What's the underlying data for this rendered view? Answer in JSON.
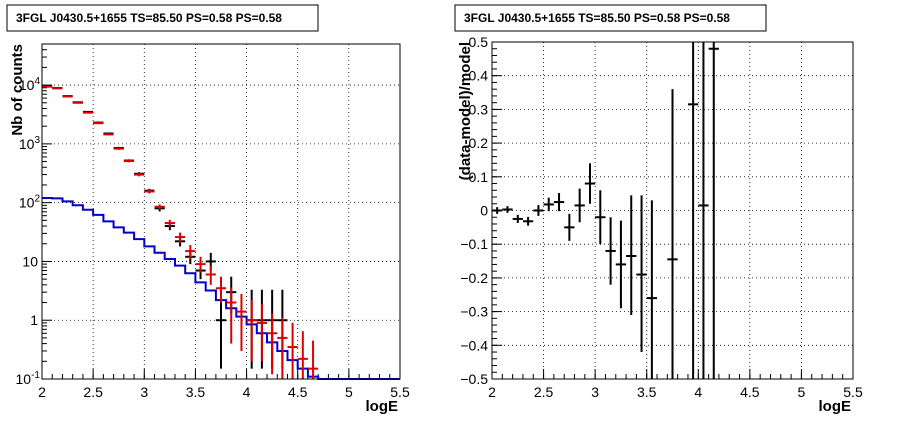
{
  "chart_data": [
    {
      "type": "scatter",
      "title": "3FGL J0430.5+1655 TS=85.50 PS=0.58 PS=0.58",
      "xlabel": "logE",
      "ylabel": "Nb of counts",
      "xlim": [
        2,
        5.5
      ],
      "ylim": [
        0.1,
        50000
      ],
      "yscale": "log",
      "grid": true,
      "x_ticks": [
        "2",
        "2.5",
        "3",
        "3.5",
        "4",
        "4.5",
        "5",
        "5.5"
      ],
      "y_ticks": [
        {
          "value": 0.1,
          "base": "10",
          "exp": "-1"
        },
        {
          "value": 1,
          "label": "1"
        },
        {
          "value": 10,
          "label": "10"
        },
        {
          "value": 100,
          "base": "10",
          "exp": "2"
        },
        {
          "value": 1000,
          "base": "10",
          "exp": "3"
        },
        {
          "value": 10000,
          "base": "10",
          "exp": "4"
        }
      ],
      "series": [
        {
          "color": "#000000",
          "points": [
            {
              "x": 2.05,
              "y": 9500,
              "lo": 9300,
              "hi": 9700
            },
            {
              "x": 2.15,
              "y": 8900,
              "lo": 8700,
              "hi": 9100
            },
            {
              "x": 2.25,
              "y": 6500,
              "lo": 6300,
              "hi": 6700
            },
            {
              "x": 2.35,
              "y": 5100,
              "lo": 4950,
              "hi": 5250
            },
            {
              "x": 2.45,
              "y": 3500,
              "lo": 3400,
              "hi": 3600
            },
            {
              "x": 2.55,
              "y": 2300,
              "lo": 2220,
              "hi": 2380
            },
            {
              "x": 2.65,
              "y": 1500,
              "lo": 1440,
              "hi": 1560
            },
            {
              "x": 2.75,
              "y": 850,
              "lo": 810,
              "hi": 890
            },
            {
              "x": 2.85,
              "y": 520,
              "lo": 495,
              "hi": 545
            },
            {
              "x": 2.95,
              "y": 310,
              "lo": 290,
              "hi": 330
            },
            {
              "x": 3.05,
              "y": 160,
              "lo": 148,
              "hi": 172
            },
            {
              "x": 3.15,
              "y": 80,
              "lo": 71,
              "hi": 89
            },
            {
              "x": 3.25,
              "y": 40,
              "lo": 34,
              "hi": 47
            },
            {
              "x": 3.35,
              "y": 22,
              "lo": 18,
              "hi": 27
            },
            {
              "x": 3.45,
              "y": 12,
              "lo": 9,
              "hi": 16
            },
            {
              "x": 3.55,
              "y": 7,
              "lo": 5,
              "hi": 10
            },
            {
              "x": 3.65,
              "y": 10,
              "lo": 7,
              "hi": 14
            },
            {
              "x": 3.75,
              "y": 1,
              "lo": 0.15,
              "hi": 3.3
            },
            {
              "x": 3.85,
              "y": 3,
              "lo": 1.3,
              "hi": 5.5
            },
            {
              "x": 4.05,
              "y": 1,
              "lo": 0.15,
              "hi": 3.3
            },
            {
              "x": 4.15,
              "y": 1,
              "lo": 0.15,
              "hi": 3.3
            },
            {
              "x": 4.25,
              "y": 1,
              "lo": 0.15,
              "hi": 3.3
            },
            {
              "x": 4.35,
              "y": 1,
              "lo": 0.15,
              "hi": 3.3
            }
          ]
        },
        {
          "color": "#dd0000",
          "points": [
            {
              "x": 2.05,
              "y": 9400,
              "lo": 9200,
              "hi": 9600
            },
            {
              "x": 2.15,
              "y": 8800,
              "lo": 8600,
              "hi": 9000
            },
            {
              "x": 2.25,
              "y": 6400,
              "lo": 6200,
              "hi": 6600
            },
            {
              "x": 2.35,
              "y": 5000,
              "lo": 4850,
              "hi": 5150
            },
            {
              "x": 2.45,
              "y": 3400,
              "lo": 3300,
              "hi": 3500
            },
            {
              "x": 2.55,
              "y": 2250,
              "lo": 2170,
              "hi": 2330
            },
            {
              "x": 2.65,
              "y": 1450,
              "lo": 1390,
              "hi": 1510
            },
            {
              "x": 2.75,
              "y": 830,
              "lo": 790,
              "hi": 870
            },
            {
              "x": 2.85,
              "y": 510,
              "lo": 485,
              "hi": 535
            },
            {
              "x": 2.95,
              "y": 300,
              "lo": 280,
              "hi": 320
            },
            {
              "x": 3.05,
              "y": 155,
              "lo": 143,
              "hi": 167
            },
            {
              "x": 3.15,
              "y": 85,
              "lo": 77,
              "hi": 93
            },
            {
              "x": 3.25,
              "y": 45,
              "lo": 39,
              "hi": 51
            },
            {
              "x": 3.35,
              "y": 26,
              "lo": 21,
              "hi": 31
            },
            {
              "x": 3.45,
              "y": 15,
              "lo": 11,
              "hi": 19
            },
            {
              "x": 3.55,
              "y": 9,
              "lo": 6.5,
              "hi": 12
            },
            {
              "x": 3.65,
              "y": 6,
              "lo": 4,
              "hi": 8.5
            },
            {
              "x": 3.75,
              "y": 3.5,
              "lo": 2,
              "hi": 5.5
            },
            {
              "x": 3.85,
              "y": 2,
              "lo": 0.4,
              "hi": 3.6
            },
            {
              "x": 3.95,
              "y": 1.4,
              "lo": 0.3,
              "hi": 2.8
            },
            {
              "x": 4.05,
              "y": 1,
              "lo": 0.2,
              "hi": 2.2
            },
            {
              "x": 4.15,
              "y": 0.9,
              "lo": 0.2,
              "hi": 1.9
            },
            {
              "x": 4.25,
              "y": 0.6,
              "lo": 0.12,
              "hi": 1.3
            },
            {
              "x": 4.35,
              "y": 0.5,
              "lo": 0.1,
              "hi": 1.1
            },
            {
              "x": 4.45,
              "y": 0.35,
              "lo": 0.1,
              "hi": 0.9
            },
            {
              "x": 4.55,
              "y": 0.22,
              "lo": 0.1,
              "hi": 0.65
            },
            {
              "x": 4.65,
              "y": 0.15,
              "lo": 0.1,
              "hi": 0.45
            }
          ]
        },
        {
          "type": "step",
          "color": "#0000cc",
          "edges": [
            2.0,
            2.1,
            2.2,
            2.3,
            2.4,
            2.5,
            2.6,
            2.7,
            2.8,
            2.9,
            3.0,
            3.1,
            3.2,
            3.3,
            3.4,
            3.5,
            3.6,
            3.7,
            3.8,
            3.9,
            4.0,
            4.1,
            4.2,
            4.3,
            4.4,
            4.5,
            4.6,
            4.7,
            5.5
          ],
          "values": [
            120,
            118,
            105,
            90,
            76,
            62,
            48,
            38,
            31,
            24,
            18,
            14,
            11,
            8.5,
            6.3,
            4.4,
            3.2,
            2.2,
            1.6,
            1.15,
            0.85,
            0.6,
            0.42,
            0.3,
            0.21,
            0.15,
            0.11,
            0.1
          ]
        }
      ]
    },
    {
      "type": "scatter",
      "title": "3FGL J0430.5+1655 TS=85.50 PS=0.58 PS=0.58",
      "xlabel": "logE",
      "ylabel": "(data-model)/model",
      "xlim": [
        2,
        5.5
      ],
      "ylim": [
        -0.5,
        0.5
      ],
      "grid": true,
      "x_ticks": [
        "2",
        "2.5",
        "3",
        "3.5",
        "4",
        "4.5",
        "5",
        "5.5"
      ],
      "y_ticks": [
        "−0.5",
        "−0.4",
        "−0.3",
        "−0.2",
        "−0.1",
        "0",
        "0.1",
        "0.2",
        "0.3",
        "0.4",
        "0.5"
      ],
      "series": [
        {
          "color": "#000000",
          "points": [
            {
              "x": 2.05,
              "y": 0.0,
              "lo": -0.01,
              "hi": 0.01
            },
            {
              "x": 2.15,
              "y": 0.003,
              "lo": -0.007,
              "hi": 0.013
            },
            {
              "x": 2.25,
              "y": -0.025,
              "lo": -0.037,
              "hi": -0.013
            },
            {
              "x": 2.35,
              "y": -0.032,
              "lo": -0.045,
              "hi": -0.019
            },
            {
              "x": 2.45,
              "y": 0.0,
              "lo": -0.016,
              "hi": 0.016
            },
            {
              "x": 2.55,
              "y": 0.018,
              "lo": -0.002,
              "hi": 0.038
            },
            {
              "x": 2.65,
              "y": 0.025,
              "lo": -0.002,
              "hi": 0.052
            },
            {
              "x": 2.75,
              "y": -0.05,
              "lo": -0.09,
              "hi": -0.01
            },
            {
              "x": 2.85,
              "y": 0.015,
              "lo": -0.035,
              "hi": 0.065
            },
            {
              "x": 2.95,
              "y": 0.08,
              "lo": 0.02,
              "hi": 0.14
            },
            {
              "x": 3.05,
              "y": -0.02,
              "lo": -0.1,
              "hi": 0.06
            },
            {
              "x": 3.15,
              "y": -0.12,
              "lo": -0.22,
              "hi": -0.02
            },
            {
              "x": 3.25,
              "y": -0.16,
              "lo": -0.29,
              "hi": -0.03
            },
            {
              "x": 3.35,
              "y": -0.135,
              "lo": -0.31,
              "hi": 0.045
            },
            {
              "x": 3.45,
              "y": -0.19,
              "lo": -0.42,
              "hi": 0.045
            },
            {
              "x": 3.55,
              "y": -0.26,
              "lo": -0.5,
              "hi": 0.03
            },
            {
              "x": 3.75,
              "y": -0.145,
              "lo": -0.5,
              "hi": 0.36
            },
            {
              "x": 3.95,
              "y": 0.315,
              "lo": -0.5,
              "hi": 0.5
            },
            {
              "x": 4.05,
              "y": 0.015,
              "lo": -0.5,
              "hi": 0.5
            },
            {
              "x": 4.15,
              "y": 0.48,
              "lo": -0.5,
              "hi": 0.5
            }
          ]
        }
      ]
    }
  ]
}
